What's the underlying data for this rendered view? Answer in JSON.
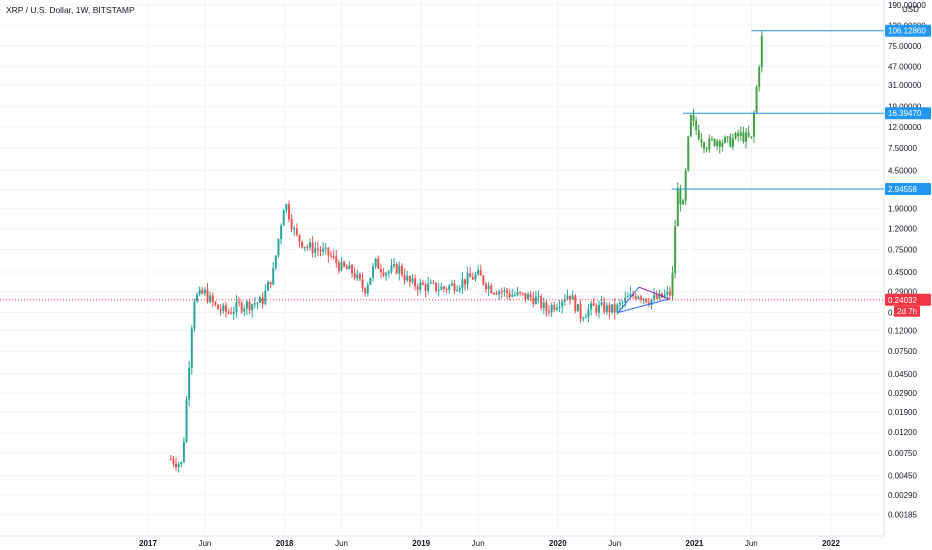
{
  "header": {
    "title": "XRP / U.S. Dollar, 1W, BITSTAMP"
  },
  "colors": {
    "up": "#26a69a",
    "down": "#ef5350",
    "projection": "#43a047",
    "level_line": "#2196f3",
    "price_line": "#f23645",
    "grid": "#f0f3fa",
    "axis_text": "#131722",
    "triangle_blue": "#2962ff",
    "triangle_purple": "#9c27b0"
  },
  "chart_data": {
    "type": "candlestick",
    "title": "XRP / U.S. Dollar, 1W, BITSTAMP",
    "yscale": "log",
    "ylim": [
      0.0015,
      190
    ],
    "y_unit": "USD",
    "y_ticks": [
      "190.00000",
      "120.00000",
      "75.00000",
      "47.00000",
      "31.00000",
      "19.00000",
      "12.00000",
      "7.50000",
      "4.50000",
      "2.90000",
      "1.90000",
      "1.20000",
      "0.75000",
      "0.45000",
      "0.29000",
      "0.18000",
      "0.12000",
      "0.07500",
      "0.04500",
      "0.02900",
      "0.01900",
      "0.01200",
      "0.00750",
      "0.00450",
      "0.00290",
      "0.00185"
    ],
    "x_ticks": [
      "2017",
      "Jun",
      "2018",
      "Jun",
      "2019",
      "Jun",
      "2020",
      "Jun",
      "2021",
      "Jun",
      "2022"
    ],
    "x_tick_dates": [
      "2017-01",
      "2017-06",
      "2018-01",
      "2018-06",
      "2019-01",
      "2019-06",
      "2020-01",
      "2020-06",
      "2021-01",
      "2021-06",
      "2022-01"
    ],
    "last_price": {
      "value": "0.24032",
      "countdown": "2d 7h"
    },
    "levels": [
      {
        "value": 106.1286,
        "label": "106.12860",
        "from": "2021-06"
      },
      {
        "value": 16.3947,
        "label": "16.39470",
        "from": "2020-12"
      },
      {
        "value": 2.94558,
        "label": "2.94558",
        "from": "2020-11"
      }
    ],
    "anchors": [
      [
        "2017-03",
        0.0065
      ],
      [
        "2017-04",
        0.0058
      ],
      [
        "2017-05",
        0.25
      ],
      [
        "2017-06",
        0.28
      ],
      [
        "2017-07",
        0.2
      ],
      [
        "2017-08",
        0.18
      ],
      [
        "2017-09",
        0.21
      ],
      [
        "2017-10",
        0.22
      ],
      [
        "2017-11",
        0.23
      ],
      [
        "2017-12",
        0.45
      ],
      [
        "2018-01",
        2.3
      ],
      [
        "2018-02",
        1.0
      ],
      [
        "2018-03",
        0.8
      ],
      [
        "2018-04",
        0.75
      ],
      [
        "2018-05",
        0.65
      ],
      [
        "2018-06",
        0.5
      ],
      [
        "2018-07",
        0.45
      ],
      [
        "2018-08",
        0.3
      ],
      [
        "2018-09",
        0.55
      ],
      [
        "2018-10",
        0.45
      ],
      [
        "2018-11",
        0.5
      ],
      [
        "2018-12",
        0.35
      ],
      [
        "2019-01",
        0.33
      ],
      [
        "2019-03",
        0.31
      ],
      [
        "2019-05",
        0.38
      ],
      [
        "2019-06",
        0.42
      ],
      [
        "2019-07",
        0.32
      ],
      [
        "2019-09",
        0.27
      ],
      [
        "2019-11",
        0.25
      ],
      [
        "2019-12",
        0.19
      ],
      [
        "2020-01",
        0.23
      ],
      [
        "2020-02",
        0.28
      ],
      [
        "2020-03",
        0.17
      ],
      [
        "2020-04",
        0.2
      ],
      [
        "2020-05",
        0.2
      ],
      [
        "2020-06",
        0.19
      ],
      [
        "2020-07",
        0.24
      ],
      [
        "2020-08",
        0.28
      ],
      [
        "2020-09",
        0.24
      ],
      [
        "2020-10",
        0.25
      ],
      [
        "2020-11",
        0.28
      ],
      [
        "2020-11-15",
        2.9
      ],
      [
        "2020-12",
        2.0
      ],
      [
        "2020-12-20",
        15.0
      ],
      [
        "2021-01",
        12.0
      ],
      [
        "2021-02",
        8.0
      ],
      [
        "2021-03",
        9.0
      ],
      [
        "2021-04",
        8.5
      ],
      [
        "2021-05",
        10.0
      ],
      [
        "2021-06",
        9.0
      ],
      [
        "2021-06-20",
        45.0
      ],
      [
        "2021-07",
        106.0
      ]
    ]
  }
}
